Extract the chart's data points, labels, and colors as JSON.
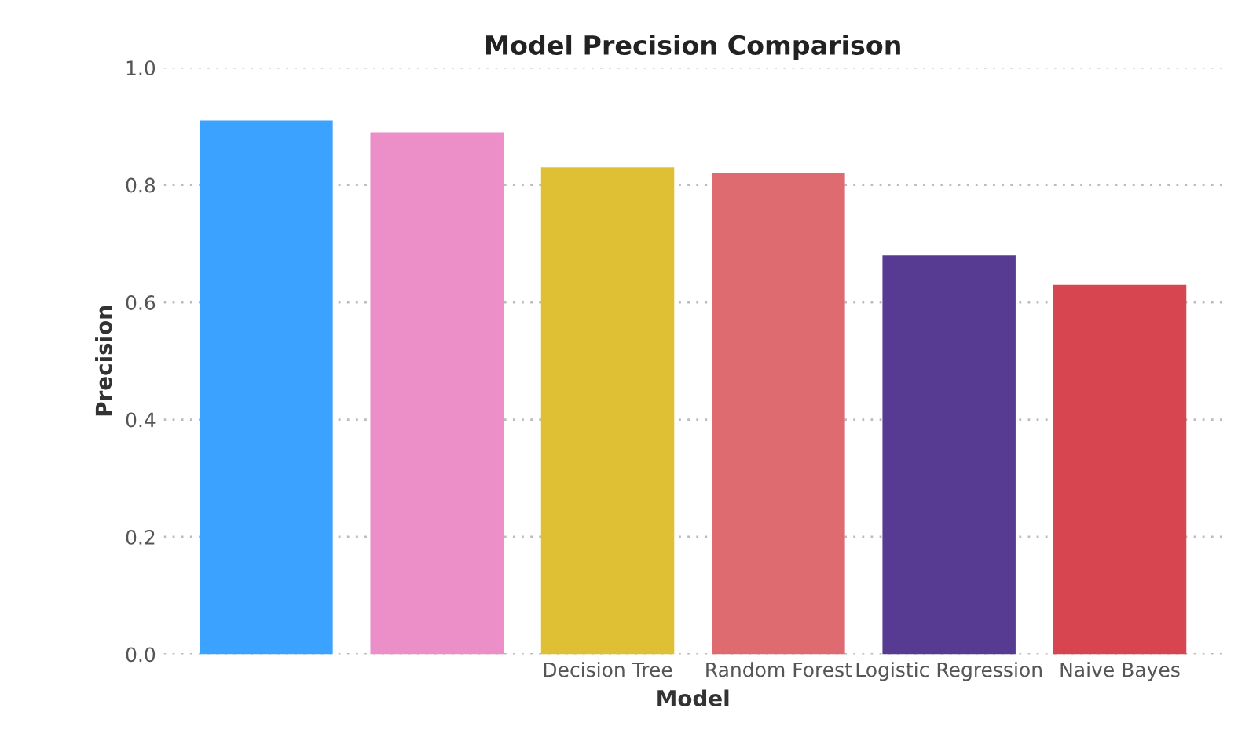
{
  "chart_data": {
    "type": "bar",
    "title": "Model Precision Comparison",
    "xlabel": "Model",
    "ylabel": "Precision",
    "categories": [
      null,
      null,
      "Decision Tree",
      "Random Forest",
      "Logistic Regression",
      "Naive Bayes"
    ],
    "values": [
      0.91,
      0.89,
      0.83,
      0.82,
      0.68,
      0.63
    ],
    "colors": [
      "#3ba3ff",
      "#ec8ec8",
      "#dfc035",
      "#dd6b70",
      "#573b92",
      "#d64550"
    ],
    "ylim": [
      0,
      1.0
    ],
    "yticks": [
      {
        "value": 0,
        "label": "0.0"
      },
      0.2,
      0.4,
      0.6,
      0.8,
      {
        "value": 1.0,
        "label": "1.0"
      }
    ],
    "grid": "y"
  }
}
